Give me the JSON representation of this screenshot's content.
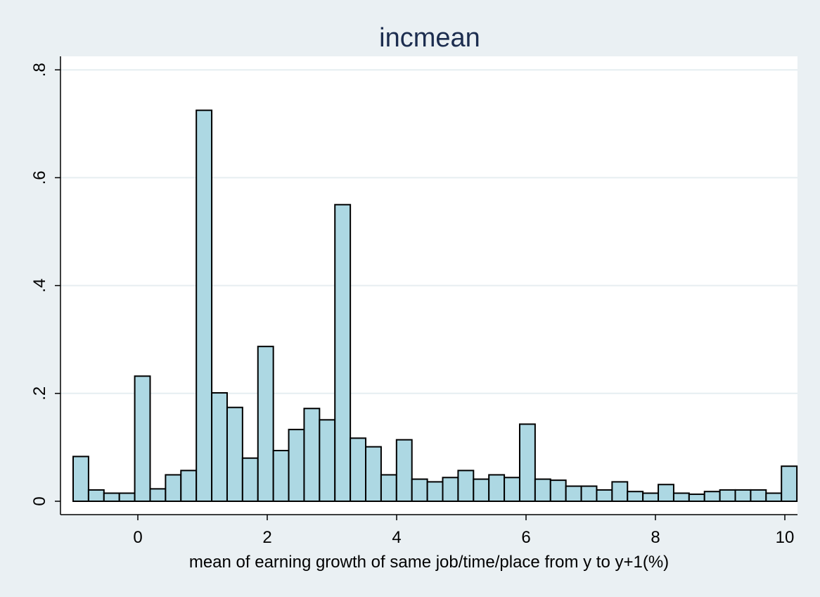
{
  "chart_data": {
    "type": "bar",
    "title": "incmean",
    "xlabel": "mean of earning growth of same job/time/place from y to y+1(%)",
    "ylabel": "",
    "xlim": [
      -1.2,
      10.2
    ],
    "ylim": [
      0,
      0.8
    ],
    "bin_start": -1.0,
    "bin_width": 0.238,
    "x_ticks": [
      0,
      2,
      4,
      6,
      8,
      10
    ],
    "x_tick_labels": [
      "0",
      "2",
      "4",
      "6",
      "8",
      "10"
    ],
    "y_ticks": [
      0,
      0.2,
      0.4,
      0.6,
      0.8
    ],
    "y_tick_labels": [
      "0",
      ".2",
      ".4",
      ".6",
      ".8"
    ],
    "grid": true,
    "values": [
      0.083,
      0.021,
      0.015,
      0.015,
      0.232,
      0.023,
      0.049,
      0.057,
      0.725,
      0.201,
      0.174,
      0.08,
      0.287,
      0.094,
      0.133,
      0.172,
      0.151,
      0.55,
      0.117,
      0.101,
      0.049,
      0.114,
      0.041,
      0.036,
      0.044,
      0.057,
      0.041,
      0.049,
      0.044,
      0.143,
      0.041,
      0.039,
      0.028,
      0.028,
      0.021,
      0.036,
      0.018,
      0.015,
      0.031,
      0.015,
      0.013,
      0.018,
      0.021,
      0.021,
      0.021,
      0.015,
      0.065
    ],
    "colors": {
      "background": "#eaf0f3",
      "plot_area": "#ffffff",
      "bar_fill": "#add8e3",
      "bar_stroke": "#000000",
      "grid": "#e6eef1",
      "title": "#1c2d4f"
    }
  }
}
